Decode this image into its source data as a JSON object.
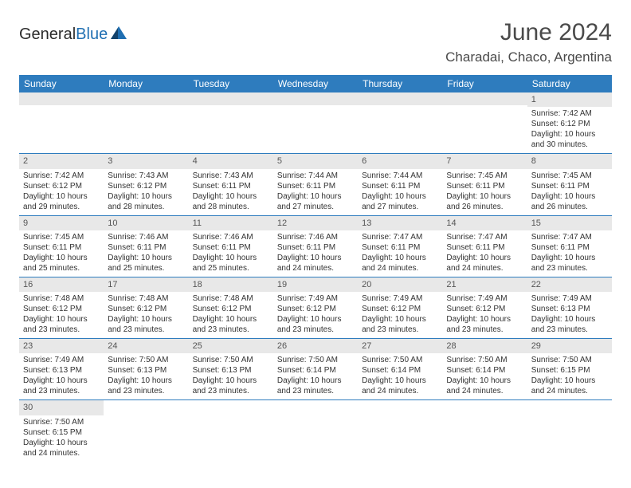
{
  "colors": {
    "header_bg": "#2e7cbe",
    "header_fg": "#ffffff",
    "daynum_bg": "#e8e8e8",
    "border": "#2e7cbe",
    "text": "#333333",
    "logo_blue": "#1f6fb2"
  },
  "logo": {
    "text1": "General",
    "text2": "Blue"
  },
  "title": "June 2024",
  "location": "Charadai, Chaco, Argentina",
  "day_headers": [
    "Sunday",
    "Monday",
    "Tuesday",
    "Wednesday",
    "Thursday",
    "Friday",
    "Saturday"
  ],
  "weeks": [
    [
      null,
      null,
      null,
      null,
      null,
      null,
      {
        "n": "1",
        "sunrise": "7:42 AM",
        "sunset": "6:12 PM",
        "dl": "10 hours and 30 minutes."
      }
    ],
    [
      {
        "n": "2",
        "sunrise": "7:42 AM",
        "sunset": "6:12 PM",
        "dl": "10 hours and 29 minutes."
      },
      {
        "n": "3",
        "sunrise": "7:43 AM",
        "sunset": "6:12 PM",
        "dl": "10 hours and 28 minutes."
      },
      {
        "n": "4",
        "sunrise": "7:43 AM",
        "sunset": "6:11 PM",
        "dl": "10 hours and 28 minutes."
      },
      {
        "n": "5",
        "sunrise": "7:44 AM",
        "sunset": "6:11 PM",
        "dl": "10 hours and 27 minutes."
      },
      {
        "n": "6",
        "sunrise": "7:44 AM",
        "sunset": "6:11 PM",
        "dl": "10 hours and 27 minutes."
      },
      {
        "n": "7",
        "sunrise": "7:45 AM",
        "sunset": "6:11 PM",
        "dl": "10 hours and 26 minutes."
      },
      {
        "n": "8",
        "sunrise": "7:45 AM",
        "sunset": "6:11 PM",
        "dl": "10 hours and 26 minutes."
      }
    ],
    [
      {
        "n": "9",
        "sunrise": "7:45 AM",
        "sunset": "6:11 PM",
        "dl": "10 hours and 25 minutes."
      },
      {
        "n": "10",
        "sunrise": "7:46 AM",
        "sunset": "6:11 PM",
        "dl": "10 hours and 25 minutes."
      },
      {
        "n": "11",
        "sunrise": "7:46 AM",
        "sunset": "6:11 PM",
        "dl": "10 hours and 25 minutes."
      },
      {
        "n": "12",
        "sunrise": "7:46 AM",
        "sunset": "6:11 PM",
        "dl": "10 hours and 24 minutes."
      },
      {
        "n": "13",
        "sunrise": "7:47 AM",
        "sunset": "6:11 PM",
        "dl": "10 hours and 24 minutes."
      },
      {
        "n": "14",
        "sunrise": "7:47 AM",
        "sunset": "6:11 PM",
        "dl": "10 hours and 24 minutes."
      },
      {
        "n": "15",
        "sunrise": "7:47 AM",
        "sunset": "6:11 PM",
        "dl": "10 hours and 23 minutes."
      }
    ],
    [
      {
        "n": "16",
        "sunrise": "7:48 AM",
        "sunset": "6:12 PM",
        "dl": "10 hours and 23 minutes."
      },
      {
        "n": "17",
        "sunrise": "7:48 AM",
        "sunset": "6:12 PM",
        "dl": "10 hours and 23 minutes."
      },
      {
        "n": "18",
        "sunrise": "7:48 AM",
        "sunset": "6:12 PM",
        "dl": "10 hours and 23 minutes."
      },
      {
        "n": "19",
        "sunrise": "7:49 AM",
        "sunset": "6:12 PM",
        "dl": "10 hours and 23 minutes."
      },
      {
        "n": "20",
        "sunrise": "7:49 AM",
        "sunset": "6:12 PM",
        "dl": "10 hours and 23 minutes."
      },
      {
        "n": "21",
        "sunrise": "7:49 AM",
        "sunset": "6:12 PM",
        "dl": "10 hours and 23 minutes."
      },
      {
        "n": "22",
        "sunrise": "7:49 AM",
        "sunset": "6:13 PM",
        "dl": "10 hours and 23 minutes."
      }
    ],
    [
      {
        "n": "23",
        "sunrise": "7:49 AM",
        "sunset": "6:13 PM",
        "dl": "10 hours and 23 minutes."
      },
      {
        "n": "24",
        "sunrise": "7:50 AM",
        "sunset": "6:13 PM",
        "dl": "10 hours and 23 minutes."
      },
      {
        "n": "25",
        "sunrise": "7:50 AM",
        "sunset": "6:13 PM",
        "dl": "10 hours and 23 minutes."
      },
      {
        "n": "26",
        "sunrise": "7:50 AM",
        "sunset": "6:14 PM",
        "dl": "10 hours and 23 minutes."
      },
      {
        "n": "27",
        "sunrise": "7:50 AM",
        "sunset": "6:14 PM",
        "dl": "10 hours and 24 minutes."
      },
      {
        "n": "28",
        "sunrise": "7:50 AM",
        "sunset": "6:14 PM",
        "dl": "10 hours and 24 minutes."
      },
      {
        "n": "29",
        "sunrise": "7:50 AM",
        "sunset": "6:15 PM",
        "dl": "10 hours and 24 minutes."
      }
    ],
    [
      {
        "n": "30",
        "sunrise": "7:50 AM",
        "sunset": "6:15 PM",
        "dl": "10 hours and 24 minutes."
      },
      null,
      null,
      null,
      null,
      null,
      null
    ]
  ],
  "labels": {
    "sunrise": "Sunrise: ",
    "sunset": "Sunset: ",
    "daylight": "Daylight: "
  }
}
